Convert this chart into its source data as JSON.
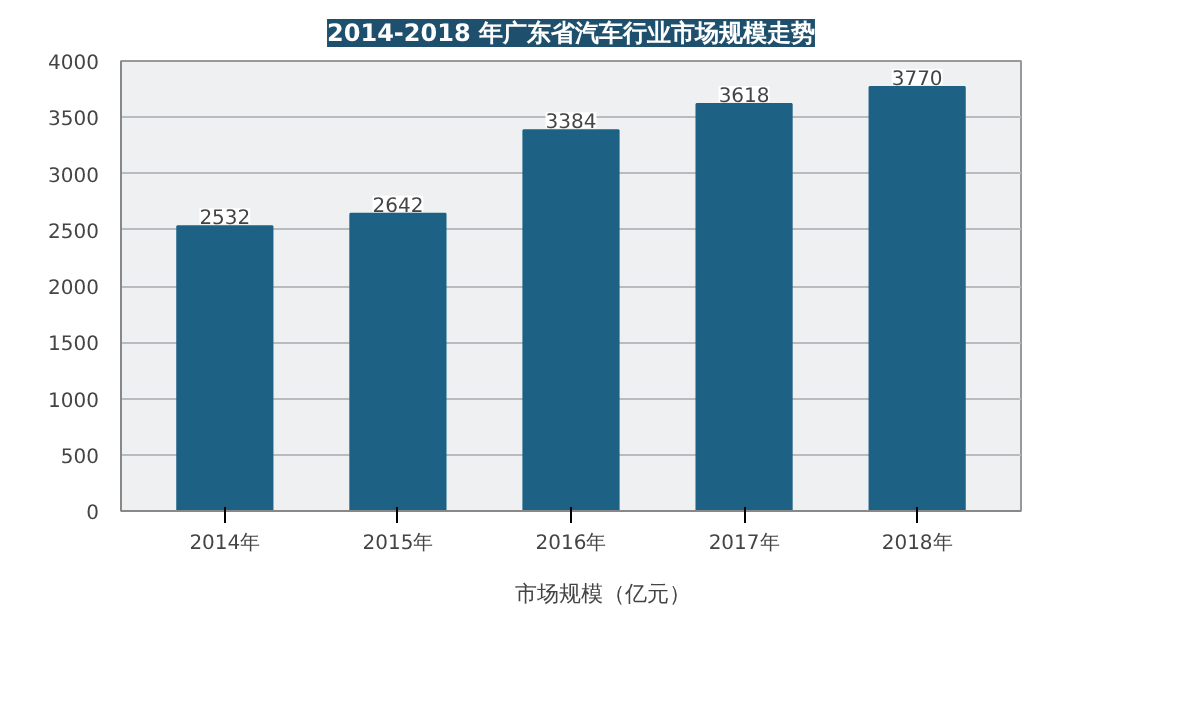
{
  "chart_data": {
    "type": "bar",
    "title": "2014-2018 年广东省汽车行业市场规模走势",
    "categories": [
      "2014年",
      "2015年",
      "2016年",
      "2017年",
      "2018年"
    ],
    "series": [
      {
        "name": "市场规模（亿元）",
        "color": "#1d6185",
        "values": [
          2532,
          2642,
          3384,
          3618,
          3770
        ]
      }
    ],
    "ylim": [
      0,
      4000
    ],
    "yticks": [
      0,
      500,
      1000,
      1500,
      2000,
      2500,
      3000,
      3500,
      4000
    ],
    "grid": "y",
    "legend": "bottom",
    "data_labels": true
  }
}
